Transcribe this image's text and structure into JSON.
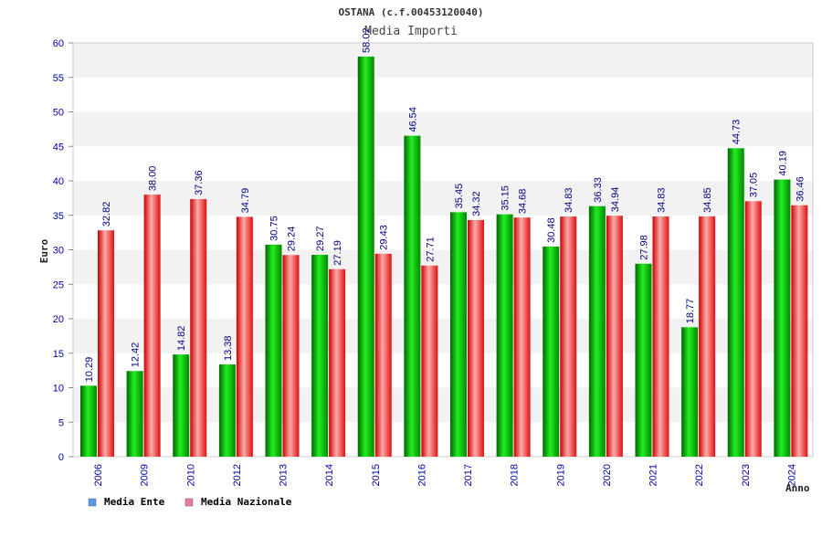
{
  "colors": {
    "series_1": "#00aa00",
    "series_2": "#e02020",
    "legend_1": "#5599ee",
    "legend_2": "#ee77aa",
    "band_alt": "#f2f2f2",
    "tick_text": "#0000aa"
  },
  "chart_data": {
    "type": "bar",
    "title": "OSTANA (c.f.00453120040)",
    "subtitle": "Media Importi",
    "xlabel": "Anno",
    "ylabel": "Euro",
    "ylim": [
      0,
      60
    ],
    "yticks": [
      0,
      5,
      10,
      15,
      20,
      25,
      30,
      35,
      40,
      45,
      50,
      55,
      60
    ],
    "grid": "horizontal bands",
    "legend_position": "bottom-left",
    "categories": [
      "2006",
      "2009",
      "2010",
      "2012",
      "2013",
      "2014",
      "2015",
      "2016",
      "2017",
      "2018",
      "2019",
      "2020",
      "2021",
      "2022",
      "2023",
      "2024"
    ],
    "series": [
      {
        "name": "Media Ente",
        "values": [
          10.29,
          12.42,
          14.82,
          13.38,
          30.75,
          29.27,
          58.02,
          46.54,
          35.45,
          35.15,
          30.48,
          36.33,
          27.98,
          18.77,
          44.73,
          40.19
        ],
        "labels": [
          "10.29",
          "12.42",
          "14.82",
          "13.38",
          "30.75",
          "29.27",
          "58.02",
          "46.54",
          "35.45",
          "35.15",
          "30.48",
          "36.33",
          "27.98",
          "18.77",
          "44.73",
          "40.19"
        ]
      },
      {
        "name": "Media Nazionale",
        "values": [
          32.82,
          38.0,
          37.36,
          34.79,
          29.24,
          27.19,
          29.43,
          27.71,
          34.32,
          34.68,
          34.83,
          34.94,
          34.83,
          34.85,
          37.05,
          36.46
        ],
        "labels": [
          "32.82",
          "38.00",
          "37.36",
          "34.79",
          "29.24",
          "27.19",
          "29.43",
          "27.71",
          "34.32",
          "34.68",
          "34.83",
          "34.94",
          "34.83",
          "34.85",
          "37.05",
          "36.46"
        ]
      }
    ]
  }
}
